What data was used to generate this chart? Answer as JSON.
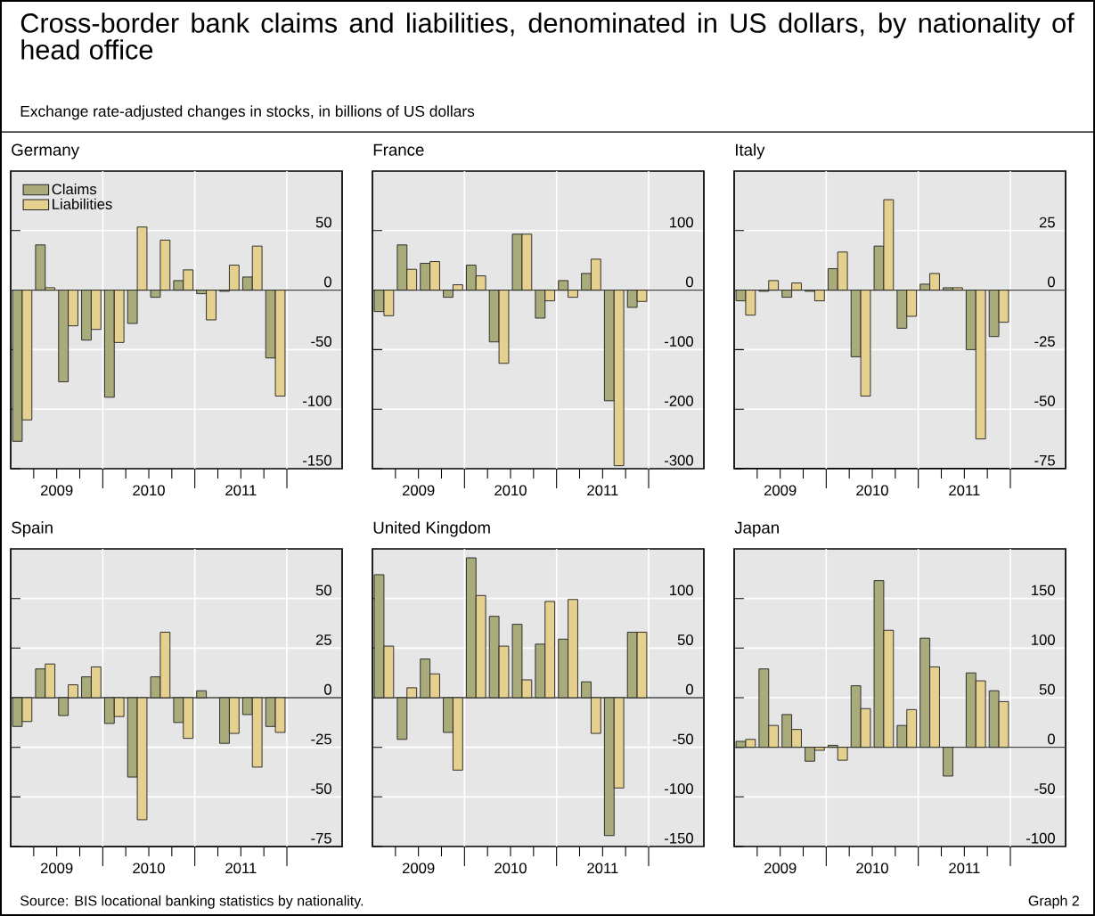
{
  "chart_data": [
    {
      "type": "other",
      "title": "Cross-border bank claims and liabilities, denominated in US dollars, by nationality of head office",
      "subtitle": "Exchange rate-adjusted changes in stocks, in billions of US dollars",
      "annotations": [
        "Source: BIS locational banking statistics by nationality.",
        "Graph 2"
      ]
    },
    {
      "type": "bar",
      "title": "Germany",
      "x": [
        2009.125,
        2009.375,
        2009.625,
        2009.875,
        2010.125,
        2010.375,
        2010.625,
        2010.875,
        2011.125,
        2011.375,
        2011.625,
        2011.875
      ],
      "xlim": [
        2009,
        2012.6
      ],
      "xticks": [
        {
          "value": 2009.25,
          "label": null
        },
        {
          "value": 2009.5,
          "label": "2009"
        },
        {
          "value": 2009.75,
          "label": null
        },
        {
          "value": 2010,
          "label": null
        },
        {
          "value": 2010.25,
          "label": null
        },
        {
          "value": 2010.5,
          "label": "2010"
        },
        {
          "value": 2010.75,
          "label": null
        },
        {
          "value": 2011,
          "label": null
        },
        {
          "value": 2011.25,
          "label": null
        },
        {
          "value": 2011.5,
          "label": "2011"
        },
        {
          "value": 2011.75,
          "label": null
        },
        {
          "value": 2012,
          "label": null
        }
      ],
      "ylim": [
        -150,
        100
      ],
      "yticks": [
        -150,
        -100,
        -50,
        0,
        50
      ],
      "grid": true,
      "legend": "top left",
      "series": [
        {
          "name": "Claims",
          "color": "#a9ab7b",
          "values": [
            -127,
            38,
            -77,
            -42,
            -90,
            -28,
            -6,
            8,
            -3,
            -1,
            11,
            -57
          ]
        },
        {
          "name": "Liabilities",
          "color": "#e5d08f",
          "values": [
            -109,
            2,
            -30,
            -33,
            -44,
            53,
            42,
            17,
            -25,
            21,
            37,
            -89
          ]
        }
      ]
    },
    {
      "type": "bar",
      "title": "France",
      "x": [
        2009.125,
        2009.375,
        2009.625,
        2009.875,
        2010.125,
        2010.375,
        2010.625,
        2010.875,
        2011.125,
        2011.375,
        2011.625,
        2011.875
      ],
      "xlim": [
        2009,
        2012.6
      ],
      "xticks": [
        {
          "value": 2009.25,
          "label": null
        },
        {
          "value": 2009.5,
          "label": "2009"
        },
        {
          "value": 2009.75,
          "label": null
        },
        {
          "value": 2010,
          "label": null
        },
        {
          "value": 2010.25,
          "label": null
        },
        {
          "value": 2010.5,
          "label": "2010"
        },
        {
          "value": 2010.75,
          "label": null
        },
        {
          "value": 2011,
          "label": null
        },
        {
          "value": 2011.25,
          "label": null
        },
        {
          "value": 2011.5,
          "label": "2011"
        },
        {
          "value": 2011.75,
          "label": null
        },
        {
          "value": 2012,
          "label": null
        }
      ],
      "ylim": [
        -300,
        200
      ],
      "yticks": [
        -300,
        -200,
        -100,
        0,
        100
      ],
      "grid": true,
      "series": [
        {
          "color": "#a9ab7b",
          "values": [
            -36,
            76,
            45,
            -12,
            42,
            -87,
            94,
            -47,
            16,
            28,
            -186,
            -29
          ]
        },
        {
          "color": "#e5d08f",
          "values": [
            -43,
            35,
            48,
            9,
            24,
            -123,
            94,
            -18,
            -12,
            52,
            -295,
            -19
          ]
        }
      ]
    },
    {
      "type": "bar",
      "title": "Italy",
      "x": [
        2009.125,
        2009.375,
        2009.625,
        2009.875,
        2010.125,
        2010.375,
        2010.625,
        2010.875,
        2011.125,
        2011.375,
        2011.625,
        2011.875
      ],
      "xlim": [
        2009,
        2012.6
      ],
      "xticks": [
        {
          "value": 2009.25,
          "label": null
        },
        {
          "value": 2009.5,
          "label": "2009"
        },
        {
          "value": 2009.75,
          "label": null
        },
        {
          "value": 2010,
          "label": null
        },
        {
          "value": 2010.25,
          "label": null
        },
        {
          "value": 2010.5,
          "label": "2010"
        },
        {
          "value": 2010.75,
          "label": null
        },
        {
          "value": 2011,
          "label": null
        },
        {
          "value": 2011.25,
          "label": null
        },
        {
          "value": 2011.5,
          "label": "2011"
        },
        {
          "value": 2011.75,
          "label": null
        },
        {
          "value": 2012,
          "label": null
        }
      ],
      "ylim": [
        -75,
        50
      ],
      "yticks": [
        -75,
        -50,
        -25,
        0,
        25
      ],
      "grid": true,
      "series": [
        {
          "color": "#a9ab7b",
          "values": [
            -4.5,
            -0.5,
            -3,
            -0.5,
            9,
            -28,
            18.5,
            -16,
            2.5,
            1,
            -25,
            -19.5
          ]
        },
        {
          "color": "#e5d08f",
          "values": [
            -10.5,
            4,
            3,
            -4.5,
            16,
            -44.5,
            38,
            -11,
            7,
            1,
            -62.5,
            -13.5
          ]
        }
      ]
    },
    {
      "type": "bar",
      "title": "Spain",
      "x": [
        2009.125,
        2009.375,
        2009.625,
        2009.875,
        2010.125,
        2010.375,
        2010.625,
        2010.875,
        2011.125,
        2011.375,
        2011.625,
        2011.875
      ],
      "xlim": [
        2009,
        2012.6
      ],
      "xticks": [
        {
          "value": 2009.25,
          "label": null
        },
        {
          "value": 2009.5,
          "label": "2009"
        },
        {
          "value": 2009.75,
          "label": null
        },
        {
          "value": 2010,
          "label": null
        },
        {
          "value": 2010.25,
          "label": null
        },
        {
          "value": 2010.5,
          "label": "2010"
        },
        {
          "value": 2010.75,
          "label": null
        },
        {
          "value": 2011,
          "label": null
        },
        {
          "value": 2011.25,
          "label": null
        },
        {
          "value": 2011.5,
          "label": "2011"
        },
        {
          "value": 2011.75,
          "label": null
        },
        {
          "value": 2012,
          "label": null
        }
      ],
      "ylim": [
        -75,
        75
      ],
      "yticks": [
        -75,
        -50,
        -25,
        0,
        25,
        50
      ],
      "grid": true,
      "series": [
        {
          "color": "#a9ab7b",
          "values": [
            -14.5,
            14.5,
            -9,
            10.5,
            -13,
            -40,
            10.5,
            -12.5,
            3.5,
            -23,
            -8.5,
            -14.5
          ]
        },
        {
          "color": "#e5d08f",
          "values": [
            -12,
            17,
            6.5,
            15.5,
            -9.5,
            -61.5,
            33,
            -20.5,
            null,
            -18,
            -35,
            -17.5
          ]
        }
      ]
    },
    {
      "type": "bar",
      "title": "United Kingdom",
      "x": [
        2009.125,
        2009.375,
        2009.625,
        2009.875,
        2010.125,
        2010.375,
        2010.625,
        2010.875,
        2011.125,
        2011.375,
        2011.625,
        2011.875
      ],
      "xlim": [
        2009,
        2012.6
      ],
      "xticks": [
        {
          "value": 2009.25,
          "label": null
        },
        {
          "value": 2009.5,
          "label": "2009"
        },
        {
          "value": 2009.75,
          "label": null
        },
        {
          "value": 2010,
          "label": null
        },
        {
          "value": 2010.25,
          "label": null
        },
        {
          "value": 2010.5,
          "label": "2010"
        },
        {
          "value": 2010.75,
          "label": null
        },
        {
          "value": 2011,
          "label": null
        },
        {
          "value": 2011.25,
          "label": null
        },
        {
          "value": 2011.5,
          "label": "2011"
        },
        {
          "value": 2011.75,
          "label": null
        },
        {
          "value": 2012,
          "label": null
        }
      ],
      "ylim": [
        -150,
        150
      ],
      "yticks": [
        -150,
        -100,
        -50,
        0,
        50,
        100
      ],
      "grid": true,
      "series": [
        {
          "color": "#a9ab7b",
          "values": [
            124,
            -42,
            39,
            -35,
            141,
            82,
            74,
            54,
            59,
            16,
            -139,
            66
          ]
        },
        {
          "color": "#e5d08f",
          "values": [
            52,
            10,
            24,
            -73,
            103,
            52,
            18,
            97,
            99,
            -36,
            -91,
            66
          ]
        }
      ]
    },
    {
      "type": "bar",
      "title": "Japan",
      "x": [
        2009.125,
        2009.375,
        2009.625,
        2009.875,
        2010.125,
        2010.375,
        2010.625,
        2010.875,
        2011.125,
        2011.375,
        2011.625,
        2011.875
      ],
      "xlim": [
        2009,
        2012.6
      ],
      "xticks": [
        {
          "value": 2009.25,
          "label": null
        },
        {
          "value": 2009.5,
          "label": "2009"
        },
        {
          "value": 2009.75,
          "label": null
        },
        {
          "value": 2010,
          "label": null
        },
        {
          "value": 2010.25,
          "label": null
        },
        {
          "value": 2010.5,
          "label": "2010"
        },
        {
          "value": 2010.75,
          "label": null
        },
        {
          "value": 2011,
          "label": null
        },
        {
          "value": 2011.25,
          "label": null
        },
        {
          "value": 2011.5,
          "label": "2011"
        },
        {
          "value": 2011.75,
          "label": null
        },
        {
          "value": 2012,
          "label": null
        }
      ],
      "ylim": [
        -100,
        200
      ],
      "yticks": [
        -100,
        -50,
        0,
        50,
        100,
        150
      ],
      "grid": true,
      "series": [
        {
          "color": "#a9ab7b",
          "values": [
            6,
            79,
            33,
            -14,
            2,
            62,
            168,
            22,
            110,
            -29,
            75,
            57
          ]
        },
        {
          "color": "#e5d08f",
          "values": [
            8,
            22,
            18,
            -3,
            -13,
            39,
            118,
            38,
            81,
            null,
            67,
            46
          ]
        }
      ]
    }
  ]
}
